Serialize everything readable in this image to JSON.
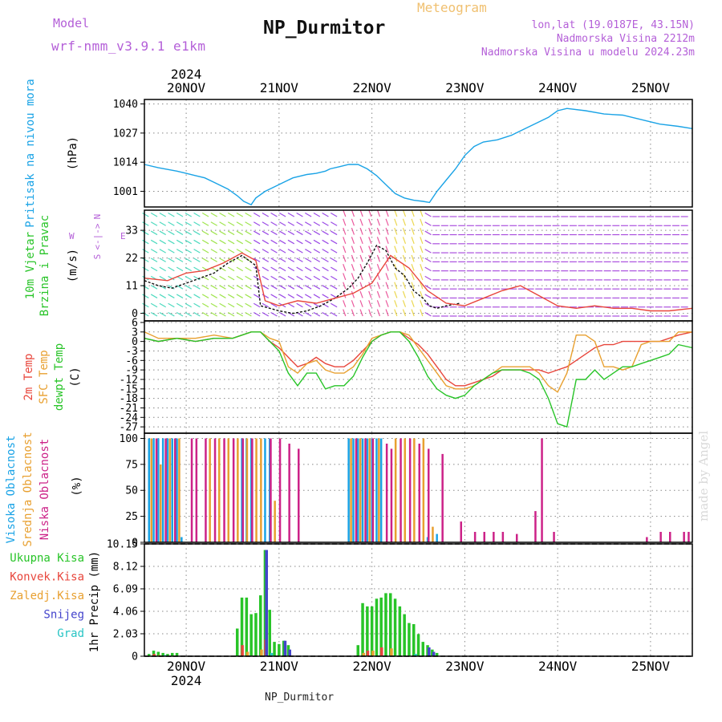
{
  "header": {
    "model_label": "Model",
    "model_value": "wrf-nmm_v3.9.1 e1km",
    "title": "NP_Durmitor",
    "meteogram_label": "Meteogram",
    "coords": "lon,lat (19.0187E, 43.15N)",
    "elevation": "Nadmorska Visina 2212m",
    "model_elevation": "Nadmorska Visina u modelu 2024.23m",
    "footer": "NP_Durmitor",
    "credit": "made by Angel",
    "year_top": "2024",
    "year_bottom": "2024"
  },
  "colors": {
    "pressure": "#1aa3e6",
    "red": "#e8463c",
    "orange": "#e8a030",
    "green": "#28c428",
    "purple": "#b45fd8",
    "magenta": "#cc2288",
    "blue": "#2a6fd0",
    "snow": "#4444cc",
    "grad": "#28c4c4"
  },
  "chart_data": [
    {
      "type": "line",
      "panel": "pressure",
      "ylabel_1": "Pritisak na nivou mora",
      "ylabel_2": "(hPa)",
      "yticks": [
        1001,
        1014,
        1027,
        1040
      ],
      "ylim": [
        994,
        1042
      ],
      "xlim": [
        -0.45,
        5.45
      ],
      "xticks": [
        "20NOV",
        "21NOV",
        "22NOV",
        "23NOV",
        "24NOV",
        "25NOV"
      ],
      "series": [
        {
          "color": "pressure",
          "x": [
            -0.45,
            -0.3,
            -0.1,
            0.0,
            0.1,
            0.2,
            0.3,
            0.45,
            0.55,
            0.62,
            0.7,
            0.75,
            0.85,
            0.95,
            1.05,
            1.15,
            1.3,
            1.4,
            1.5,
            1.55,
            1.65,
            1.75,
            1.85,
            1.95,
            2.05,
            2.15,
            2.25,
            2.35,
            2.45,
            2.55,
            2.62,
            2.7,
            2.8,
            2.9,
            3.0,
            3.1,
            3.2,
            3.35,
            3.5,
            3.6,
            3.7,
            3.8,
            3.9,
            4.0,
            4.1,
            4.3,
            4.5,
            4.7,
            4.9,
            5.1,
            5.3,
            5.45
          ],
          "y": [
            1013,
            1011.5,
            1010,
            1009,
            1008,
            1007,
            1005,
            1002,
            999,
            996.5,
            995,
            998,
            1001,
            1003,
            1005,
            1007,
            1008.5,
            1009,
            1010,
            1011,
            1012,
            1013,
            1013,
            1011,
            1008,
            1004,
            1000,
            998,
            997,
            996.5,
            996,
            1001,
            1006,
            1011,
            1017,
            1021,
            1023,
            1024,
            1026,
            1028,
            1030,
            1032,
            1034,
            1037,
            1038,
            1037,
            1035.5,
            1035,
            1033,
            1031,
            1030,
            1029
          ]
        }
      ]
    },
    {
      "type": "line",
      "panel": "wind",
      "ylabel_1": "10m Vjetar",
      "ylabel_2": "Brzina i Pravac",
      "ylabel_3": "(m/s)",
      "compass": "N",
      "compass_arrows": "<-|->",
      "compass_w": "W",
      "compass_e": "E",
      "compass_s": "S",
      "yticks": [
        0,
        11,
        22,
        33
      ],
      "ylim": [
        -3,
        41
      ],
      "series": [
        {
          "name": "mean",
          "color": "#111111",
          "x": [
            -0.45,
            -0.3,
            -0.15,
            0.0,
            0.15,
            0.3,
            0.45,
            0.6,
            0.75,
            0.8,
            0.9,
            1.0,
            1.15,
            1.3,
            1.45,
            1.6,
            1.75,
            1.85,
            1.95,
            2.05,
            2.15,
            2.25,
            2.35,
            2.45,
            2.55,
            2.62,
            2.7,
            2.8,
            2.95
          ],
          "y": [
            13,
            11,
            10,
            12,
            14,
            16,
            20,
            23,
            19,
            3,
            2,
            1,
            0,
            1,
            3,
            6,
            10,
            14,
            20,
            27,
            25,
            18,
            15,
            9,
            6,
            3,
            2,
            3,
            4
          ]
        },
        {
          "name": "gust",
          "color": "red",
          "x": [
            -0.45,
            -0.2,
            0.0,
            0.2,
            0.4,
            0.6,
            0.75,
            0.85,
            1.0,
            1.2,
            1.4,
            1.6,
            1.8,
            2.0,
            2.2,
            2.4,
            2.6,
            2.8,
            3.0,
            3.2,
            3.4,
            3.6,
            3.8,
            4.0,
            4.2,
            4.4,
            4.6,
            4.8,
            5.0,
            5.2,
            5.45
          ],
          "y": [
            14,
            13,
            16,
            17,
            20,
            24,
            21,
            5,
            3,
            5,
            4,
            6,
            8,
            12,
            23,
            18,
            9,
            4,
            3,
            6,
            9,
            11,
            7,
            3,
            2,
            3,
            2,
            2,
            1,
            1,
            2
          ]
        }
      ]
    },
    {
      "type": "line",
      "panel": "temperature",
      "ylabel_1": "2m Temp",
      "ylabel_2": "SFC Temp",
      "ylabel_3": "dewpt Temp",
      "ylabel_4": "(C)",
      "yticks": [
        6,
        3,
        0,
        -3,
        -6,
        -9,
        -12,
        -15,
        -18,
        -21,
        -24,
        -27
      ],
      "ylim": [
        -29,
        6.5
      ],
      "series": [
        {
          "name": "2m Temp",
          "color": "red",
          "x": [
            -0.45,
            -0.3,
            -0.1,
            0.1,
            0.3,
            0.5,
            0.7,
            0.8,
            0.9,
            1.0,
            1.1,
            1.2,
            1.3,
            1.4,
            1.5,
            1.6,
            1.7,
            1.8,
            1.9,
            2.0,
            2.1,
            2.2,
            2.3,
            2.4,
            2.5,
            2.6,
            2.7,
            2.8,
            2.9,
            3.0,
            3.1,
            3.2,
            3.3,
            3.4,
            3.5,
            3.6,
            3.7,
            3.8,
            3.9,
            4.0,
            4.1,
            4.2,
            4.3,
            4.4,
            4.5,
            4.6,
            4.7,
            4.8,
            4.9,
            5.0,
            5.1,
            5.2,
            5.3,
            5.45
          ],
          "y": [
            1,
            0,
            1,
            0,
            1,
            1,
            3,
            3,
            0,
            -2,
            -5,
            -8,
            -7,
            -5,
            -7,
            -8,
            -8,
            -6,
            -3,
            0,
            2,
            3,
            3,
            1,
            -1,
            -4,
            -8,
            -12,
            -14,
            -14,
            -13,
            -12,
            -11,
            -9,
            -9,
            -9,
            -9,
            -9,
            -10,
            -9,
            -8,
            -6,
            -4,
            -2,
            -1,
            -1,
            0,
            0,
            0,
            0,
            0,
            1,
            2,
            3
          ]
        },
        {
          "name": "SFC Temp",
          "color": "orange",
          "x": [
            -0.45,
            -0.3,
            -0.1,
            0.1,
            0.3,
            0.5,
            0.7,
            0.8,
            0.9,
            1.0,
            1.1,
            1.2,
            1.3,
            1.4,
            1.5,
            1.6,
            1.7,
            1.8,
            1.9,
            2.0,
            2.1,
            2.2,
            2.3,
            2.4,
            2.5,
            2.6,
            2.7,
            2.8,
            2.9,
            3.0,
            3.1,
            3.2,
            3.3,
            3.4,
            3.5,
            3.6,
            3.7,
            3.8,
            3.9,
            4.0,
            4.1,
            4.2,
            4.3,
            4.4,
            4.5,
            4.6,
            4.7,
            4.8,
            4.9,
            5.0,
            5.1,
            5.2,
            5.3,
            5.45
          ],
          "y": [
            3,
            1,
            1,
            1,
            2,
            1,
            3,
            3,
            1,
            0,
            -8,
            -10,
            -7,
            -6,
            -9,
            -10,
            -10,
            -8,
            -4,
            1,
            2,
            3,
            3,
            2,
            -2,
            -6,
            -10,
            -14,
            -15,
            -15,
            -14,
            -12,
            -10,
            -8,
            -8,
            -8,
            -8,
            -10,
            -14,
            -16,
            -10,
            2,
            2,
            0,
            -8,
            -8,
            -9,
            -8,
            -1,
            0,
            0,
            0,
            3,
            3
          ]
        },
        {
          "name": "dewpt Temp",
          "color": "green",
          "x": [
            -0.45,
            -0.3,
            -0.1,
            0.1,
            0.3,
            0.5,
            0.7,
            0.8,
            0.9,
            1.0,
            1.1,
            1.2,
            1.3,
            1.4,
            1.5,
            1.6,
            1.7,
            1.8,
            1.9,
            2.0,
            2.1,
            2.2,
            2.3,
            2.4,
            2.5,
            2.6,
            2.7,
            2.8,
            2.9,
            3.0,
            3.1,
            3.2,
            3.3,
            3.4,
            3.5,
            3.6,
            3.7,
            3.8,
            3.9,
            4.0,
            4.1,
            4.2,
            4.3,
            4.4,
            4.5,
            4.6,
            4.7,
            4.8,
            4.9,
            5.0,
            5.1,
            5.2,
            5.3,
            5.45
          ],
          "y": [
            1,
            0,
            1,
            0,
            1,
            1,
            3,
            3,
            0,
            -3,
            -10,
            -14,
            -10,
            -10,
            -15,
            -14,
            -14,
            -11,
            -5,
            0,
            2,
            3,
            3,
            0,
            -5,
            -11,
            -15,
            -17,
            -18,
            -17,
            -14,
            -12,
            -10,
            -9,
            -9,
            -9,
            -10,
            -12,
            -18,
            -26,
            -27,
            -12,
            -12,
            -9,
            -12,
            -10,
            -8,
            -8,
            -7,
            -6,
            -5,
            -4,
            -1,
            -2
          ]
        }
      ]
    },
    {
      "type": "bar",
      "panel": "clouds",
      "ylabel_1": "Visoka Oblacnost",
      "ylabel_2": "Srednja Oblacnost",
      "ylabel_3": "Niska Oblacnost",
      "ylabel_4": "(%)",
      "yticks": [
        0,
        25,
        50,
        75,
        100
      ],
      "ylim": [
        0,
        105
      ],
      "series": [
        {
          "name": "Visoka Oblacnost",
          "color": "pressure",
          "x": [
            -0.4,
            -0.35,
            -0.3,
            -0.25,
            -0.2,
            -0.15,
            -0.1,
            -0.05,
            0.6,
            0.65,
            0.7,
            0.85,
            0.9,
            1.75,
            1.8,
            1.85,
            1.9,
            1.95,
            2.0,
            2.05,
            2.1,
            2.6,
            2.7
          ],
          "values": [
            100,
            100,
            100,
            100,
            100,
            100,
            100,
            5,
            100,
            100,
            100,
            100,
            100,
            100,
            100,
            100,
            100,
            100,
            100,
            100,
            100,
            5,
            8
          ]
        },
        {
          "name": "Srednja Oblacnost",
          "color": "orange",
          "x": [
            -0.38,
            -0.28,
            -0.18,
            -0.08,
            0.25,
            0.35,
            0.45,
            0.55,
            0.65,
            0.75,
            0.8,
            0.95,
            1.77,
            1.87,
            1.97,
            2.07,
            2.25,
            2.35,
            2.45,
            2.55,
            2.65
          ],
          "values": [
            100,
            75,
            100,
            100,
            100,
            100,
            100,
            100,
            100,
            100,
            100,
            40,
            100,
            100,
            100,
            100,
            100,
            100,
            100,
            100,
            15
          ]
        },
        {
          "name": "Niska Oblacnost",
          "color": "magenta",
          "x": [
            -0.33,
            -0.23,
            -0.13,
            0.05,
            0.1,
            0.2,
            0.3,
            0.4,
            0.5,
            0.6,
            0.7,
            0.9,
            1.0,
            1.1,
            1.2,
            1.82,
            1.92,
            2.0,
            2.15,
            2.2,
            2.3,
            2.4,
            2.5,
            2.6,
            2.75,
            2.95,
            3.1,
            3.2,
            3.3,
            3.4,
            3.55,
            3.75,
            3.82,
            3.95,
            4.95,
            5.1,
            5.2,
            5.35,
            5.4
          ],
          "values": [
            100,
            100,
            100,
            100,
            100,
            100,
            100,
            100,
            100,
            100,
            100,
            100,
            100,
            95,
            90,
            100,
            100,
            100,
            95,
            90,
            100,
            100,
            95,
            90,
            85,
            20,
            10,
            10,
            10,
            10,
            8,
            30,
            100,
            10,
            5,
            10,
            10,
            10,
            10
          ]
        }
      ]
    },
    {
      "type": "bar",
      "panel": "precip",
      "labels": [
        "Ukupna Kisa",
        "Konvek.Kisa",
        "Zaledj.Kisa",
        "Snijeg",
        "Grad"
      ],
      "ylabel_1": "1hr Precip (mm)",
      "yticks": [
        0,
        2.03,
        4.06,
        6.09,
        8.12,
        10.15
      ],
      "ylim": [
        0,
        10.15
      ],
      "series": [
        {
          "name": "Ukupna Kisa",
          "color": "green",
          "x": [
            -0.4,
            -0.35,
            -0.3,
            -0.25,
            -0.2,
            -0.15,
            -0.1,
            0.55,
            0.6,
            0.65,
            0.7,
            0.75,
            0.8,
            0.85,
            0.9,
            0.95,
            1.0,
            1.05,
            1.1,
            1.85,
            1.9,
            1.95,
            2.0,
            2.05,
            2.1,
            2.15,
            2.2,
            2.25,
            2.3,
            2.35,
            2.4,
            2.45,
            2.5,
            2.55,
            2.6,
            2.65,
            2.7
          ],
          "values": [
            0.2,
            0.5,
            0.4,
            0.3,
            0.2,
            0.3,
            0.3,
            2.5,
            5.3,
            5.3,
            3.8,
            3.9,
            5.5,
            9.6,
            4.2,
            1.3,
            1.1,
            1.4,
            1.0,
            1.0,
            4.8,
            4.5,
            4.5,
            5.2,
            5.3,
            5.7,
            5.7,
            5.2,
            4.5,
            3.8,
            3.0,
            2.9,
            2.0,
            1.3,
            1.0,
            0.6,
            0.3
          ]
        },
        {
          "name": "Konvek.Kisa",
          "color": "red",
          "x": [
            -0.35,
            0.6,
            0.85,
            1.95,
            2.1
          ],
          "values": [
            0.2,
            1.0,
            1.5,
            0.5,
            0.8
          ]
        },
        {
          "name": "Zaledj.Kisa",
          "color": "orange",
          "x": [
            -0.3,
            0.65,
            0.8,
            1.9,
            2.0,
            2.2
          ],
          "values": [
            0.1,
            0.4,
            0.6,
            0.3,
            0.5,
            0.7
          ]
        },
        {
          "name": "Snijeg",
          "color": "snow",
          "x": [
            0.85,
            1.05,
            1.1,
            2.6,
            2.65
          ],
          "values": [
            9.6,
            1.4,
            0.6,
            0.8,
            0.4
          ]
        },
        {
          "name": "Grad",
          "color": "grad",
          "x": [
            -0.25,
            0.9,
            2.45
          ],
          "values": [
            0.1,
            0.3,
            0.2
          ]
        }
      ]
    }
  ]
}
